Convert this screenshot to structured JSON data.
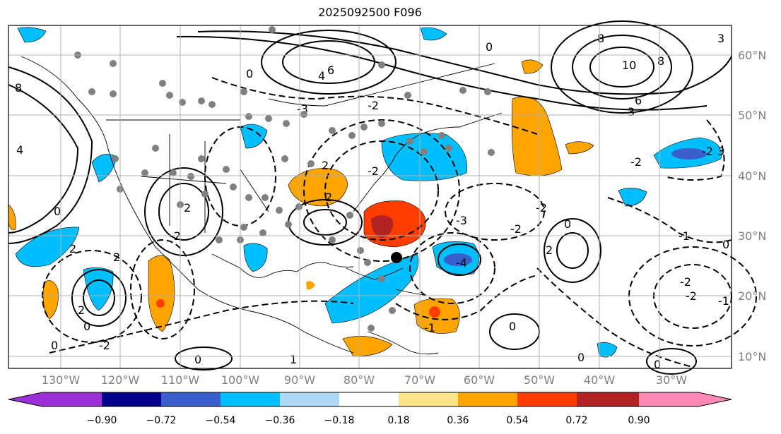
{
  "title": "2025092500 F096",
  "map": {
    "lat_labels": [
      "60°N",
      "50°N",
      "40°N",
      "30°N",
      "20°N",
      "10°N"
    ],
    "lon_labels": [
      "130°W",
      "120°W",
      "110°W",
      "100°W",
      "90°W",
      "80°W",
      "70°W",
      "60°W",
      "50°W",
      "40°W",
      "30°W"
    ],
    "gridline_color": "#b0b0b0",
    "contour_label_values": [
      "6",
      "4",
      "8",
      "0",
      "2",
      "-2",
      "-3",
      "-4",
      "-1",
      "10",
      "3",
      "1"
    ]
  },
  "colorbar": {
    "ticks": [
      "−0.90",
      "−0.72",
      "−0.54",
      "−0.36",
      "−0.18",
      "0.18",
      "0.36",
      "0.54",
      "0.72",
      "0.90"
    ],
    "colors": [
      "#9b30d9",
      "#00008b",
      "#3a5fcd",
      "#00bfff",
      "#add8f6",
      "#ffffff",
      "#fde68a",
      "#ffa500",
      "#ff3d00",
      "#b22222",
      "#ff88b4"
    ]
  }
}
